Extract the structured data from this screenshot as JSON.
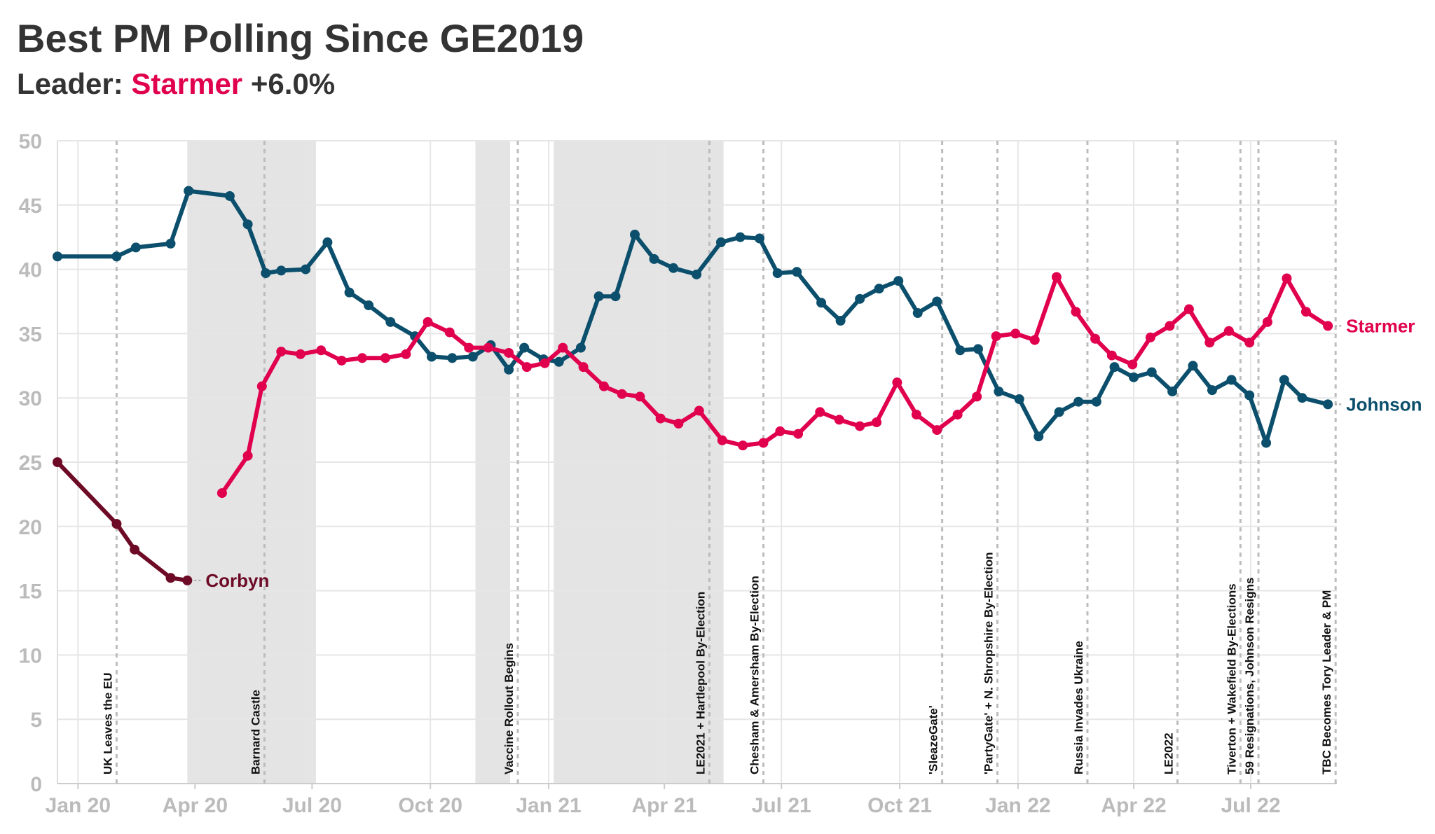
{
  "title": "Best PM Polling Since GE2019",
  "subtitle": {
    "prefix": "Leader: ",
    "leader": "Starmer",
    "margin": "+6.0%"
  },
  "colors": {
    "Johnson": "#0b4f6c",
    "Starmer": "#e0004d",
    "Corbyn": "#6d0a26",
    "grid": "#e6e6e6",
    "band": "#e4e4e4",
    "event": "#bdbdbd",
    "tick": "#bbbbbb"
  },
  "chart_data": {
    "type": "line",
    "title": "Best PM Polling Since GE2019",
    "xlabel": "",
    "ylabel": "",
    "ylim": [
      0,
      50
    ],
    "xlim": [
      "2019-12-16",
      "2022-09-06"
    ],
    "yticks": [
      0,
      5,
      10,
      15,
      20,
      25,
      30,
      35,
      40,
      45,
      50
    ],
    "xticks": [
      {
        "date": "2020-01-01",
        "label": "Jan 20"
      },
      {
        "date": "2020-04-01",
        "label": "Apr 20"
      },
      {
        "date": "2020-07-01",
        "label": "Jul 20"
      },
      {
        "date": "2020-10-01",
        "label": "Oct 20"
      },
      {
        "date": "2021-01-01",
        "label": "Jan 21"
      },
      {
        "date": "2021-04-01",
        "label": "Apr 21"
      },
      {
        "date": "2021-07-01",
        "label": "Jul 21"
      },
      {
        "date": "2021-10-01",
        "label": "Oct 21"
      },
      {
        "date": "2022-01-01",
        "label": "Jan 22"
      },
      {
        "date": "2022-04-01",
        "label": "Apr 22"
      },
      {
        "date": "2022-07-01",
        "label": "Jul 22"
      }
    ],
    "grid": true,
    "shaded_periods": [
      {
        "start": "2020-03-26",
        "end": "2020-07-04"
      },
      {
        "start": "2020-11-05",
        "end": "2020-12-02"
      },
      {
        "start": "2021-01-05",
        "end": "2021-05-17"
      }
    ],
    "events": [
      {
        "date": "2020-01-31",
        "label": "UK Leaves the EU"
      },
      {
        "date": "2020-05-25",
        "label": "Barnard Castle"
      },
      {
        "date": "2020-12-08",
        "label": "Vaccine Rollout Begins"
      },
      {
        "date": "2021-05-06",
        "label": "LE2021 + Hartlepool By-Election"
      },
      {
        "date": "2021-06-17",
        "label": "Chesham & Amersham By-Election"
      },
      {
        "date": "2021-11-03",
        "label": "'SleazeGate'"
      },
      {
        "date": "2021-12-16",
        "label": "'PartyGate' + N. Shropshire By-Election"
      },
      {
        "date": "2022-02-24",
        "label": "Russia Invades Ukraine"
      },
      {
        "date": "2022-05-05",
        "label": "LE2022"
      },
      {
        "date": "2022-06-23",
        "label": "Tiverton + Wakefield By-Elections"
      },
      {
        "date": "2022-07-07",
        "label": "59 Resignations, Johnson Resigns"
      },
      {
        "date": "2022-09-05",
        "label": "TBC Becomes Tory Leader & PM"
      }
    ],
    "series": [
      {
        "name": "Johnson",
        "points": [
          [
            "2019-12-16",
            41.0
          ],
          [
            "2020-01-31",
            41.0
          ],
          [
            "2020-02-15",
            41.7
          ],
          [
            "2020-03-13",
            42.0
          ],
          [
            "2020-03-27",
            46.1
          ],
          [
            "2020-04-28",
            45.7
          ],
          [
            "2020-05-12",
            43.5
          ],
          [
            "2020-05-26",
            39.7
          ],
          [
            "2020-06-07",
            39.9
          ],
          [
            "2020-06-26",
            40.0
          ],
          [
            "2020-07-13",
            42.1
          ],
          [
            "2020-07-30",
            38.2
          ],
          [
            "2020-08-14",
            37.2
          ],
          [
            "2020-08-31",
            35.9
          ],
          [
            "2020-09-19",
            34.8
          ],
          [
            "2020-10-02",
            33.2
          ],
          [
            "2020-10-18",
            33.1
          ],
          [
            "2020-11-03",
            33.2
          ],
          [
            "2020-11-17",
            34.1
          ],
          [
            "2020-12-01",
            32.2
          ],
          [
            "2020-12-13",
            33.9
          ],
          [
            "2020-12-28",
            33.0
          ],
          [
            "2021-01-09",
            32.8
          ],
          [
            "2021-01-26",
            33.9
          ],
          [
            "2021-02-09",
            37.9
          ],
          [
            "2021-02-22",
            37.9
          ],
          [
            "2021-03-09",
            42.7
          ],
          [
            "2021-03-24",
            40.8
          ],
          [
            "2021-04-08",
            40.1
          ],
          [
            "2021-04-26",
            39.6
          ],
          [
            "2021-05-15",
            42.1
          ],
          [
            "2021-05-30",
            42.5
          ],
          [
            "2021-06-14",
            42.4
          ],
          [
            "2021-06-28",
            39.7
          ],
          [
            "2021-07-13",
            39.8
          ],
          [
            "2021-08-01",
            37.4
          ],
          [
            "2021-08-16",
            36.0
          ],
          [
            "2021-08-31",
            37.7
          ],
          [
            "2021-09-15",
            38.5
          ],
          [
            "2021-09-30",
            39.1
          ],
          [
            "2021-10-15",
            36.6
          ],
          [
            "2021-10-30",
            37.5
          ],
          [
            "2021-11-17",
            33.7
          ],
          [
            "2021-12-01",
            33.8
          ],
          [
            "2021-12-17",
            30.5
          ],
          [
            "2022-01-02",
            29.9
          ],
          [
            "2022-01-17",
            27.0
          ],
          [
            "2022-02-02",
            28.9
          ],
          [
            "2022-02-17",
            29.7
          ],
          [
            "2022-03-03",
            29.7
          ],
          [
            "2022-03-17",
            32.4
          ],
          [
            "2022-04-01",
            31.6
          ],
          [
            "2022-04-15",
            32.0
          ],
          [
            "2022-05-01",
            30.5
          ],
          [
            "2022-05-17",
            32.5
          ],
          [
            "2022-06-01",
            30.6
          ],
          [
            "2022-06-16",
            31.4
          ],
          [
            "2022-06-30",
            30.2
          ],
          [
            "2022-07-13",
            26.5
          ],
          [
            "2022-07-27",
            31.4
          ],
          [
            "2022-08-10",
            30.0
          ],
          [
            "2022-08-30",
            29.5
          ]
        ]
      },
      {
        "name": "Starmer",
        "points": [
          [
            "2020-04-22",
            22.6
          ],
          [
            "2020-05-12",
            25.5
          ],
          [
            "2020-05-23",
            30.9
          ],
          [
            "2020-06-07",
            33.6
          ],
          [
            "2020-06-22",
            33.4
          ],
          [
            "2020-07-08",
            33.7
          ],
          [
            "2020-07-24",
            32.9
          ],
          [
            "2020-08-09",
            33.1
          ],
          [
            "2020-08-27",
            33.1
          ],
          [
            "2020-09-12",
            33.4
          ],
          [
            "2020-09-29",
            35.9
          ],
          [
            "2020-10-16",
            35.1
          ],
          [
            "2020-10-31",
            33.9
          ],
          [
            "2020-11-15",
            33.9
          ],
          [
            "2020-12-01",
            33.5
          ],
          [
            "2020-12-15",
            32.4
          ],
          [
            "2020-12-29",
            32.7
          ],
          [
            "2021-01-12",
            33.9
          ],
          [
            "2021-01-28",
            32.4
          ],
          [
            "2021-02-13",
            30.9
          ],
          [
            "2021-02-27",
            30.3
          ],
          [
            "2021-03-13",
            30.1
          ],
          [
            "2021-03-29",
            28.4
          ],
          [
            "2021-04-12",
            28.0
          ],
          [
            "2021-04-28",
            29.0
          ],
          [
            "2021-05-16",
            26.7
          ],
          [
            "2021-06-01",
            26.3
          ],
          [
            "2021-06-17",
            26.5
          ],
          [
            "2021-06-30",
            27.4
          ],
          [
            "2021-07-14",
            27.2
          ],
          [
            "2021-07-31",
            28.9
          ],
          [
            "2021-08-15",
            28.3
          ],
          [
            "2021-08-31",
            27.8
          ],
          [
            "2021-09-13",
            28.1
          ],
          [
            "2021-09-29",
            31.2
          ],
          [
            "2021-10-14",
            28.7
          ],
          [
            "2021-10-30",
            27.5
          ],
          [
            "2021-11-15",
            28.7
          ],
          [
            "2021-11-30",
            30.1
          ],
          [
            "2021-12-15",
            34.8
          ],
          [
            "2021-12-30",
            35.0
          ],
          [
            "2022-01-14",
            34.5
          ],
          [
            "2022-01-31",
            39.4
          ],
          [
            "2022-02-15",
            36.7
          ],
          [
            "2022-03-02",
            34.6
          ],
          [
            "2022-03-15",
            33.3
          ],
          [
            "2022-03-31",
            32.6
          ],
          [
            "2022-04-14",
            34.7
          ],
          [
            "2022-04-29",
            35.6
          ],
          [
            "2022-05-14",
            36.9
          ],
          [
            "2022-05-30",
            34.3
          ],
          [
            "2022-06-14",
            35.2
          ],
          [
            "2022-06-30",
            34.3
          ],
          [
            "2022-07-14",
            35.9
          ],
          [
            "2022-07-29",
            39.3
          ],
          [
            "2022-08-13",
            36.7
          ],
          [
            "2022-08-30",
            35.6
          ]
        ]
      },
      {
        "name": "Corbyn",
        "points": [
          [
            "2019-12-16",
            25.0
          ],
          [
            "2020-01-31",
            20.2
          ],
          [
            "2020-02-14",
            18.2
          ],
          [
            "2020-03-13",
            16.0
          ],
          [
            "2020-03-26",
            15.8
          ]
        ]
      }
    ]
  }
}
